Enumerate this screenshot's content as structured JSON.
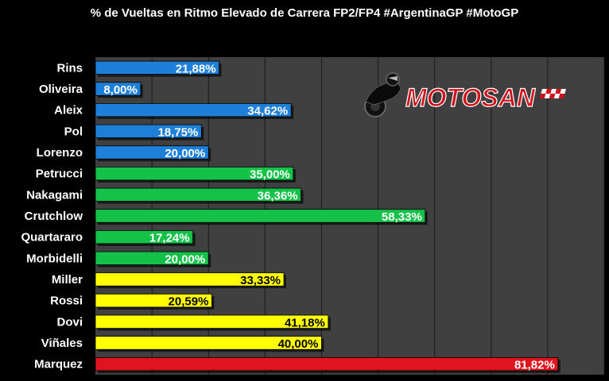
{
  "chart_data": {
    "type": "bar",
    "orientation": "horizontal",
    "title": "% de Vueltas en Ritmo Elevado de Carrera FP2/FP4 #ArgentinaGP #MotoGP",
    "categories": [
      "Rins",
      "Oliveira",
      "Aleix",
      "Pol",
      "Lorenzo",
      "Petrucci",
      "Nakagami",
      "Crutchlow",
      "Quartararo",
      "Morbidelli",
      "Miller",
      "Rossi",
      "Dovi",
      "Viñales",
      "Marquez"
    ],
    "values": [
      21.88,
      8.0,
      34.62,
      18.75,
      20.0,
      35.0,
      36.36,
      58.33,
      17.24,
      20.0,
      33.33,
      20.59,
      41.18,
      40.0,
      81.82
    ],
    "value_labels": [
      "21,88%",
      "8,00%",
      "34,62%",
      "18,75%",
      "20,00%",
      "35,00%",
      "36,36%",
      "58,33%",
      "17,24%",
      "20,00%",
      "33,33%",
      "20,59%",
      "41,18%",
      "40,00%",
      "81,82%"
    ],
    "colors": [
      "#1e7fd8",
      "#1e7fd8",
      "#1e7fd8",
      "#1e7fd8",
      "#1e7fd8",
      "#14c24a",
      "#14c24a",
      "#14c24a",
      "#14c24a",
      "#14c24a",
      "#ffff00",
      "#ffff00",
      "#ffff00",
      "#ffff00",
      "#e0141e"
    ],
    "xlim": [
      0,
      90
    ],
    "grid": true,
    "background": "#404040"
  },
  "logo": {
    "text_moto": "MOTO",
    "text_san": "SAN"
  }
}
